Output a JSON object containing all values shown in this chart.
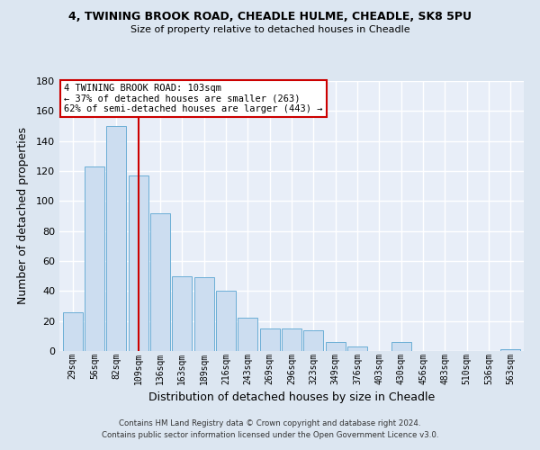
{
  "title": "4, TWINING BROOK ROAD, CHEADLE HULME, CHEADLE, SK8 5PU",
  "subtitle": "Size of property relative to detached houses in Cheadle",
  "xlabel": "Distribution of detached houses by size in Cheadle",
  "ylabel": "Number of detached properties",
  "bar_labels": [
    "29sqm",
    "56sqm",
    "82sqm",
    "109sqm",
    "136sqm",
    "163sqm",
    "189sqm",
    "216sqm",
    "243sqm",
    "269sqm",
    "296sqm",
    "323sqm",
    "349sqm",
    "376sqm",
    "403sqm",
    "430sqm",
    "456sqm",
    "483sqm",
    "510sqm",
    "536sqm",
    "563sqm"
  ],
  "bar_values": [
    26,
    123,
    150,
    117,
    92,
    50,
    49,
    40,
    22,
    15,
    15,
    14,
    6,
    3,
    0,
    6,
    0,
    0,
    0,
    0,
    1
  ],
  "bar_color": "#ccddf0",
  "bar_edge_color": "#6baed6",
  "bar_width": 0.9,
  "red_line_index": 3,
  "red_line_color": "#cc0000",
  "ylim": [
    0,
    180
  ],
  "yticks": [
    0,
    20,
    40,
    60,
    80,
    100,
    120,
    140,
    160,
    180
  ],
  "annotation_line1": "4 TWINING BROOK ROAD: 103sqm",
  "annotation_line2": "← 37% of detached houses are smaller (263)",
  "annotation_line3": "62% of semi-detached houses are larger (443) →",
  "annotation_box_color": "#ffffff",
  "annotation_box_edge": "#cc0000",
  "footer_line1": "Contains HM Land Registry data © Crown copyright and database right 2024.",
  "footer_line2": "Contains public sector information licensed under the Open Government Licence v3.0.",
  "bg_color": "#dce6f1",
  "plot_bg_color": "#e8eef8",
  "grid_color": "#ffffff"
}
